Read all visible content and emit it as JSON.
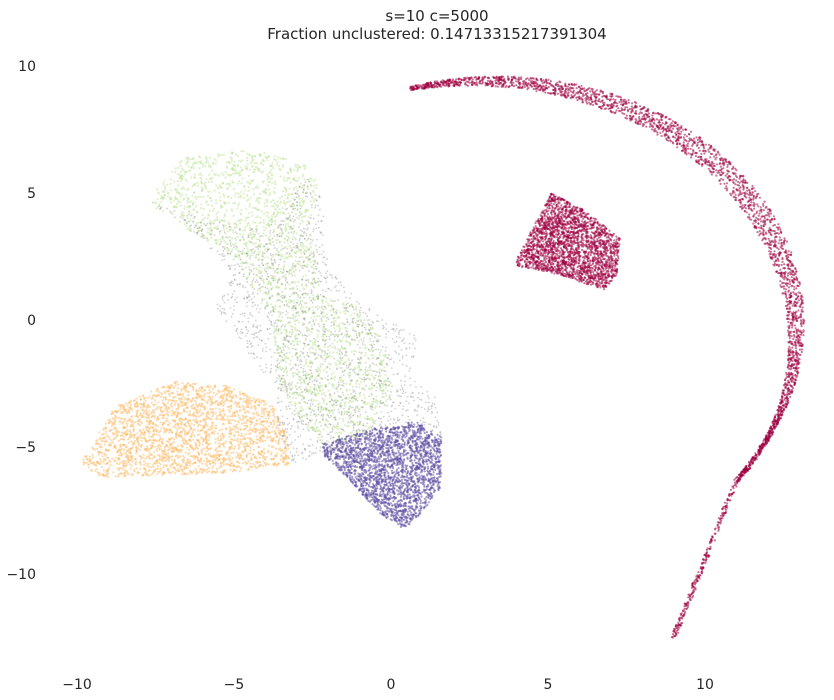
{
  "chart_data": {
    "type": "scatter",
    "title_line1": "s=10 c=5000",
    "title_line2": "Fraction unclustered: 0.14713315217391304",
    "xlabel": "",
    "ylabel": "",
    "xlim": [
      -10.5,
      13.3
    ],
    "ylim": [
      -12.9,
      10.0
    ],
    "x_ticks": [
      -10,
      -5,
      0,
      5,
      10
    ],
    "x_tick_labels": [
      "−10",
      "−5",
      "0",
      "5",
      "10"
    ],
    "y_ticks": [
      10,
      5,
      0,
      -5,
      -10
    ],
    "y_tick_labels": [
      "10",
      "5",
      "0",
      "−5",
      "−10"
    ],
    "grid": false,
    "legend": "none",
    "series": [
      {
        "color": "#9e0142",
        "regions": [
          {
            "kind": "arc",
            "center": [
              3.0,
              -0.5
            ],
            "inner_radius": 9.5,
            "outer_radius": 10.3,
            "angle_start_deg": 104,
            "angle_end_deg": -36,
            "tail_end": [
              9.0,
              -12.5
            ],
            "start": [
              1.4,
              8.0
            ]
          },
          {
            "kind": "polygon",
            "points": [
              [
                4.0,
                2.4
              ],
              [
                5.1,
                5.0
              ],
              [
                6.2,
                4.3
              ],
              [
                7.3,
                3.2
              ],
              [
                7.2,
                1.8
              ],
              [
                6.8,
                1.2
              ],
              [
                5.0,
                1.9
              ],
              [
                4.0,
                2.1
              ]
            ]
          }
        ]
      },
      {
        "color": "#c3e5a0",
        "regions": [
          {
            "kind": "polygon",
            "points": [
              [
                -7.5,
                5.1
              ],
              [
                -6.6,
                6.4
              ],
              [
                -4.5,
                6.7
              ],
              [
                -2.9,
                6.3
              ],
              [
                -2.3,
                5.5
              ],
              [
                -2.6,
                3.8
              ],
              [
                -2.2,
                1.0
              ],
              [
                -1.0,
                0.5
              ],
              [
                -0.2,
                -1.0
              ],
              [
                0.0,
                -3.0
              ],
              [
                -0.8,
                -4.6
              ],
              [
                -2.2,
                -4.9
              ],
              [
                -3.5,
                -3.0
              ],
              [
                -3.8,
                0.0
              ],
              [
                -5.0,
                2.5
              ],
              [
                -6.8,
                3.8
              ],
              [
                -7.6,
                4.5
              ]
            ]
          }
        ]
      },
      {
        "color": "#fdbe6e",
        "regions": [
          {
            "kind": "polygon",
            "points": [
              [
                -9.9,
                -5.7
              ],
              [
                -8.8,
                -3.4
              ],
              [
                -6.8,
                -2.4
              ],
              [
                -5.2,
                -2.6
              ],
              [
                -3.6,
                -3.4
              ],
              [
                -3.3,
                -4.8
              ],
              [
                -3.2,
                -5.7
              ],
              [
                -5.0,
                -6.0
              ],
              [
                -9.2,
                -6.2
              ]
            ]
          }
        ]
      },
      {
        "color": "#5e4fa2",
        "regions": [
          {
            "kind": "polygon",
            "points": [
              [
                -2.2,
                -4.9
              ],
              [
                -0.7,
                -4.3
              ],
              [
                0.8,
                -4.0
              ],
              [
                1.6,
                -4.6
              ],
              [
                1.6,
                -6.6
              ],
              [
                0.5,
                -8.3
              ],
              [
                -0.4,
                -7.6
              ],
              [
                -1.4,
                -6.2
              ],
              [
                -2.1,
                -5.4
              ]
            ]
          }
        ]
      },
      {
        "color": "#7f7f7f",
        "regions": [
          {
            "kind": "polygon",
            "points": [
              [
                -7.6,
                4.6
              ],
              [
                -6.0,
                4.0
              ],
              [
                -4.0,
                3.6
              ],
              [
                -2.7,
                5.6
              ],
              [
                -2.2,
                4.8
              ],
              [
                -2.0,
                2.0
              ],
              [
                -0.2,
                0.0
              ],
              [
                0.9,
                -0.5
              ],
              [
                0.6,
                -2.2
              ],
              [
                1.4,
                -2.9
              ],
              [
                1.6,
                -4.6
              ],
              [
                0.7,
                -4.0
              ],
              [
                -0.4,
                -4.4
              ],
              [
                -1.8,
                -5.1
              ],
              [
                -3.2,
                -5.7
              ],
              [
                -3.6,
                -4.4
              ],
              [
                -3.7,
                -2.6
              ],
              [
                -4.8,
                -1.0
              ],
              [
                -5.6,
                0.6
              ],
              [
                -5.0,
                1.8
              ],
              [
                -6.2,
                3.4
              ]
            ]
          }
        ]
      }
    ]
  }
}
